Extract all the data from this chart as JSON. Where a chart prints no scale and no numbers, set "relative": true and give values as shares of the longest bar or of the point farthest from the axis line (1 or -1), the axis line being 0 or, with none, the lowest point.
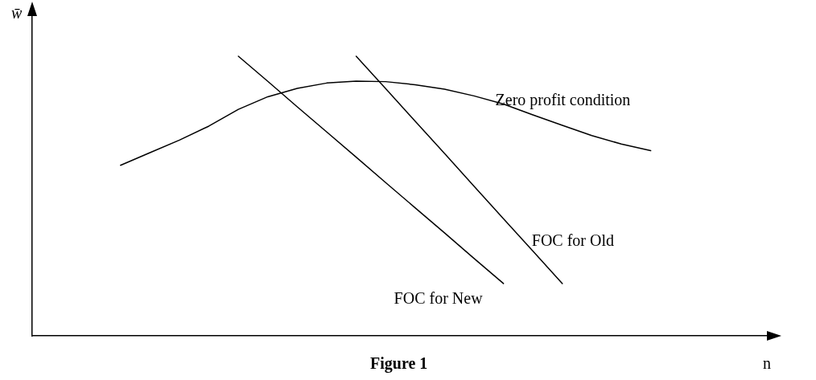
{
  "chart_data": {
    "type": "line",
    "title": "Figure 1",
    "xlabel": "n",
    "ylabel": "w̄",
    "relative": true,
    "legend": false,
    "grid": false,
    "marker": "none",
    "line_style": "solid",
    "categories": [
      null,
      null,
      null,
      null,
      null,
      null,
      null,
      null,
      null,
      null,
      null,
      null,
      null,
      null,
      null,
      null,
      null,
      null,
      null,
      null,
      null,
      null,
      null,
      null,
      null,
      null
    ],
    "series": [
      {
        "name": "Zero profit condition",
        "color": "#000000",
        "values": [
          null,
          null,
          null,
          0.61,
          0.655,
          0.7,
          0.75,
          0.81,
          0.855,
          0.885,
          0.904,
          0.911,
          0.909,
          0.898,
          0.882,
          0.858,
          0.829,
          0.79,
          0.753,
          0.716,
          0.686,
          0.662,
          null,
          null,
          null,
          null
        ]
      },
      {
        "name": "FOC for New",
        "color": "#000000",
        "values": [
          null,
          null,
          null,
          null,
          null,
          null,
          null,
          1,
          0.91,
          0.819,
          0.729,
          0.639,
          0.548,
          0.458,
          0.368,
          0.277,
          0.187,
          null,
          null,
          null,
          null,
          null,
          null,
          null,
          null,
          null
        ]
      },
      {
        "name": "FOC for Old",
        "color": "#000000",
        "values": [
          null,
          null,
          null,
          null,
          null,
          null,
          null,
          null,
          null,
          null,
          null,
          1,
          0.884,
          0.768,
          0.652,
          0.535,
          0.419,
          0.303,
          0.187,
          null,
          null,
          null,
          null,
          null,
          null,
          null
        ]
      }
    ]
  }
}
